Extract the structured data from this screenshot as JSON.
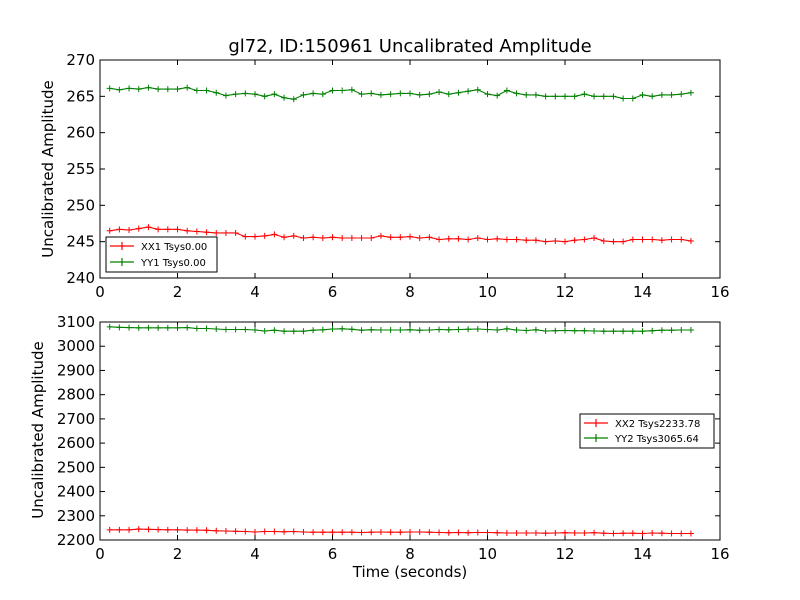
{
  "chart_data": [
    {
      "type": "line",
      "title": "gl72, ID:150961 Uncalibrated Amplitude",
      "xlabel": "",
      "ylabel": "Uncalibrated Amplitude",
      "xlim": [
        0,
        16
      ],
      "ylim": [
        240,
        270
      ],
      "xticks": [
        "0",
        "2",
        "4",
        "6",
        "8",
        "10",
        "12",
        "14",
        "16"
      ],
      "yticks": [
        "240",
        "245",
        "250",
        "255",
        "260",
        "265",
        "270"
      ],
      "legend_position": "lower-left",
      "x": [
        0.25,
        0.5,
        0.75,
        1.0,
        1.25,
        1.5,
        1.75,
        2.0,
        2.25,
        2.5,
        2.75,
        3.0,
        3.25,
        3.5,
        3.75,
        4.0,
        4.25,
        4.5,
        4.75,
        5.0,
        5.25,
        5.5,
        5.75,
        6.0,
        6.25,
        6.5,
        6.75,
        7.0,
        7.25,
        7.5,
        7.75,
        8.0,
        8.25,
        8.5,
        8.75,
        9.0,
        9.25,
        9.5,
        9.75,
        10.0,
        10.25,
        10.5,
        10.75,
        11.0,
        11.25,
        11.5,
        11.75,
        12.0,
        12.25,
        12.5,
        12.75,
        13.0,
        13.25,
        13.5,
        13.75,
        14.0,
        14.25,
        14.5,
        14.75,
        15.0,
        15.25
      ],
      "series": [
        {
          "name": "XX1 Tsys0.00",
          "color": "#ff0000",
          "values": [
            246.5,
            246.7,
            246.6,
            246.8,
            247.0,
            246.7,
            246.7,
            246.7,
            246.5,
            246.4,
            246.3,
            246.2,
            246.2,
            246.2,
            245.7,
            245.7,
            245.8,
            246.0,
            245.6,
            245.8,
            245.5,
            245.6,
            245.5,
            245.6,
            245.5,
            245.5,
            245.5,
            245.5,
            245.8,
            245.6,
            245.6,
            245.7,
            245.5,
            245.6,
            245.3,
            245.4,
            245.4,
            245.3,
            245.5,
            245.3,
            245.4,
            245.3,
            245.3,
            245.2,
            245.2,
            245.0,
            245.1,
            245.0,
            245.2,
            245.3,
            245.5,
            245.1,
            245.0,
            245.0,
            245.3,
            245.3,
            245.3,
            245.2,
            245.3,
            245.3,
            245.1
          ]
        },
        {
          "name": "YY1 Tsys0.00",
          "color": "#008000",
          "values": [
            266.1,
            265.9,
            266.1,
            266.0,
            266.2,
            266.0,
            266.0,
            266.0,
            266.2,
            265.8,
            265.8,
            265.5,
            265.1,
            265.3,
            265.4,
            265.3,
            265.0,
            265.3,
            264.8,
            264.6,
            265.2,
            265.4,
            265.3,
            265.8,
            265.8,
            265.9,
            265.3,
            265.4,
            265.2,
            265.3,
            265.4,
            265.4,
            265.2,
            265.3,
            265.6,
            265.3,
            265.5,
            265.7,
            265.9,
            265.3,
            265.1,
            265.8,
            265.4,
            265.2,
            265.2,
            265.0,
            265.0,
            265.0,
            265.0,
            265.3,
            265.0,
            265.0,
            265.0,
            264.7,
            264.7,
            265.2,
            265.0,
            265.2,
            265.2,
            265.3,
            265.5
          ]
        }
      ]
    },
    {
      "type": "line",
      "title": "",
      "xlabel": "Time (seconds)",
      "ylabel": "Uncalibrated Amplitude",
      "xlim": [
        0,
        16
      ],
      "ylim": [
        2200,
        3100
      ],
      "xticks": [
        "0",
        "2",
        "4",
        "6",
        "8",
        "10",
        "12",
        "14",
        "16"
      ],
      "yticks": [
        "2200",
        "2300",
        "2400",
        "2500",
        "2600",
        "2700",
        "2800",
        "2900",
        "3000",
        "3100"
      ],
      "legend_position": "center-right",
      "x": [
        0.25,
        0.5,
        0.75,
        1.0,
        1.25,
        1.5,
        1.75,
        2.0,
        2.25,
        2.5,
        2.75,
        3.0,
        3.25,
        3.5,
        3.75,
        4.0,
        4.25,
        4.5,
        4.75,
        5.0,
        5.25,
        5.5,
        5.75,
        6.0,
        6.25,
        6.5,
        6.75,
        7.0,
        7.25,
        7.5,
        7.75,
        8.0,
        8.25,
        8.5,
        8.75,
        9.0,
        9.25,
        9.5,
        9.75,
        10.0,
        10.25,
        10.5,
        10.75,
        11.0,
        11.25,
        11.5,
        11.75,
        12.0,
        12.25,
        12.5,
        12.75,
        13.0,
        13.25,
        13.5,
        13.75,
        14.0,
        14.25,
        14.5,
        14.75,
        15.0,
        15.25
      ],
      "series": [
        {
          "name": "XX2 Tsys2233.78",
          "color": "#ff0000",
          "values": [
            2242,
            2242,
            2242,
            2245,
            2244,
            2243,
            2242,
            2242,
            2241,
            2241,
            2240,
            2238,
            2237,
            2236,
            2235,
            2233,
            2235,
            2235,
            2234,
            2235,
            2233,
            2232,
            2232,
            2232,
            2232,
            2232,
            2231,
            2232,
            2233,
            2232,
            2232,
            2233,
            2233,
            2232,
            2231,
            2230,
            2231,
            2230,
            2231,
            2231,
            2230,
            2229,
            2229,
            2229,
            2229,
            2228,
            2229,
            2230,
            2229,
            2229,
            2230,
            2228,
            2227,
            2228,
            2228,
            2227,
            2229,
            2228,
            2227,
            2227,
            2227
          ]
        },
        {
          "name": "YY2 Tsys3065.64",
          "color": "#008000",
          "values": [
            3080,
            3078,
            3077,
            3076,
            3076,
            3076,
            3076,
            3076,
            3077,
            3073,
            3073,
            3071,
            3069,
            3069,
            3069,
            3067,
            3063,
            3066,
            3062,
            3062,
            3062,
            3066,
            3068,
            3071,
            3072,
            3070,
            3066,
            3068,
            3067,
            3067,
            3067,
            3068,
            3066,
            3067,
            3069,
            3068,
            3069,
            3070,
            3071,
            3069,
            3067,
            3072,
            3067,
            3065,
            3068,
            3063,
            3064,
            3065,
            3064,
            3064,
            3063,
            3062,
            3062,
            3062,
            3062,
            3062,
            3064,
            3066,
            3066,
            3067,
            3067
          ]
        }
      ]
    }
  ]
}
